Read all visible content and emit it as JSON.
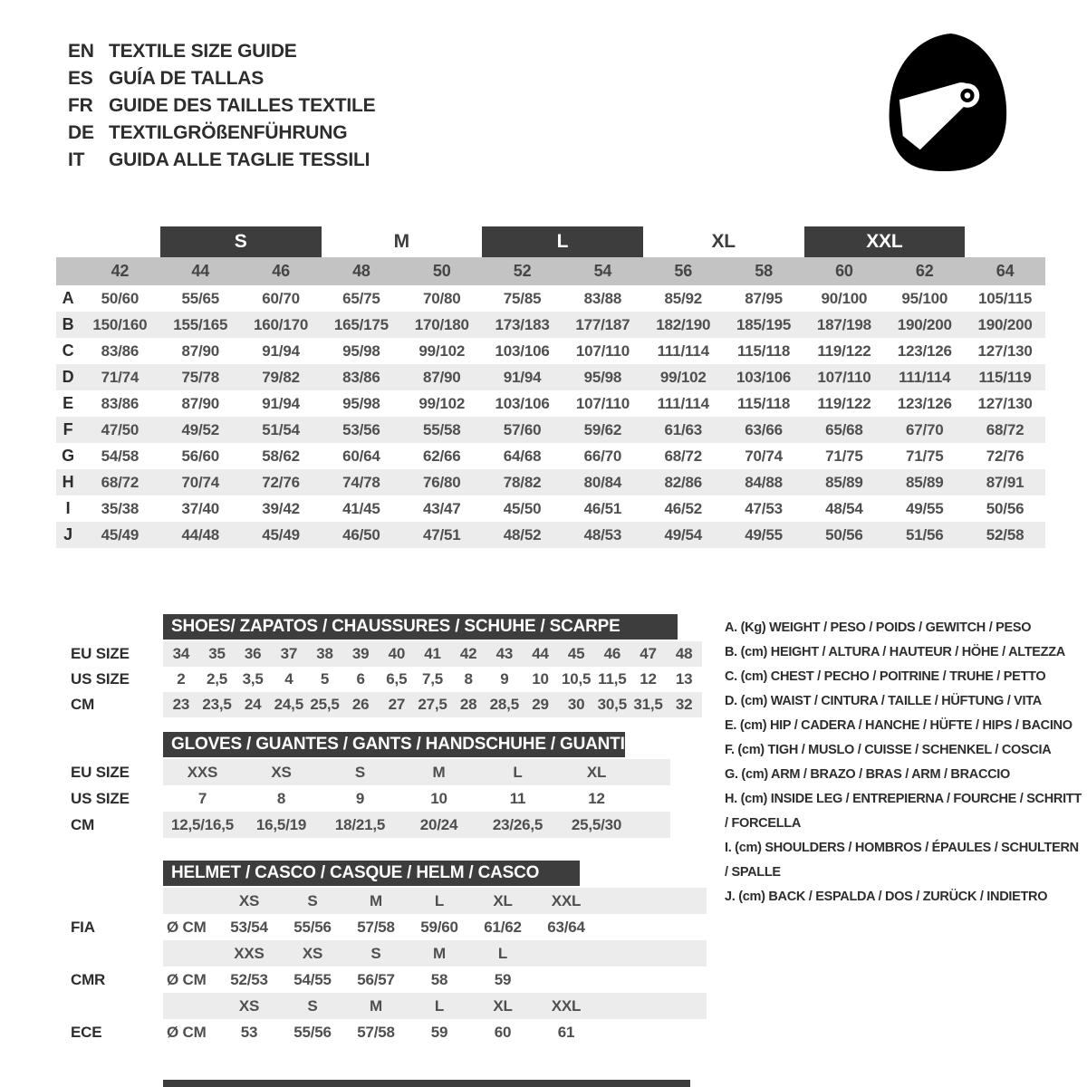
{
  "colors": {
    "dark": "#3d3d3d",
    "band": "#c3c3c3",
    "stripe": "#ececec",
    "text": "#4a4a4a"
  },
  "header": {
    "languages": [
      {
        "code": "EN",
        "label": "TEXTILE SIZE GUIDE"
      },
      {
        "code": "ES",
        "label": "GUÍA DE TALLAS"
      },
      {
        "code": "FR",
        "label": "GUIDE DES TAILLES TEXTILE"
      },
      {
        "code": "DE",
        "label": "TEXTILGRÖßENFÜHRUNG"
      },
      {
        "code": "IT",
        "label": "GUIDA ALLE TAGLIE TESSILI"
      }
    ],
    "icon": "racing-helmet"
  },
  "textile_table": {
    "size_groups": [
      {
        "label": "S",
        "boxed": true
      },
      {
        "label": "M",
        "boxed": false
      },
      {
        "label": "L",
        "boxed": true
      },
      {
        "label": "XL",
        "boxed": false
      },
      {
        "label": "XXL",
        "boxed": true
      }
    ],
    "size_numbers": [
      "42",
      "44",
      "46",
      "48",
      "50",
      "52",
      "54",
      "56",
      "58",
      "60",
      "62",
      "64"
    ],
    "rows": [
      {
        "letter": "A",
        "values": [
          "50/60",
          "55/65",
          "60/70",
          "65/75",
          "70/80",
          "75/85",
          "83/88",
          "85/92",
          "87/95",
          "90/100",
          "95/100",
          "105/115"
        ]
      },
      {
        "letter": "B",
        "values": [
          "150/160",
          "155/165",
          "160/170",
          "165/175",
          "170/180",
          "173/183",
          "177/187",
          "182/190",
          "185/195",
          "187/198",
          "190/200",
          "190/200"
        ]
      },
      {
        "letter": "C",
        "values": [
          "83/86",
          "87/90",
          "91/94",
          "95/98",
          "99/102",
          "103/106",
          "107/110",
          "111/114",
          "115/118",
          "119/122",
          "123/126",
          "127/130"
        ]
      },
      {
        "letter": "D",
        "values": [
          "71/74",
          "75/78",
          "79/82",
          "83/86",
          "87/90",
          "91/94",
          "95/98",
          "99/102",
          "103/106",
          "107/110",
          "111/114",
          "115/119"
        ]
      },
      {
        "letter": "E",
        "values": [
          "83/86",
          "87/90",
          "91/94",
          "95/98",
          "99/102",
          "103/106",
          "107/110",
          "111/114",
          "115/118",
          "119/122",
          "123/126",
          "127/130"
        ]
      },
      {
        "letter": "F",
        "values": [
          "47/50",
          "49/52",
          "51/54",
          "53/56",
          "55/58",
          "57/60",
          "59/62",
          "61/63",
          "63/66",
          "65/68",
          "67/70",
          "68/72"
        ]
      },
      {
        "letter": "G",
        "values": [
          "54/58",
          "56/60",
          "58/62",
          "60/64",
          "62/66",
          "64/68",
          "66/70",
          "68/72",
          "70/74",
          "71/75",
          "71/75",
          "72/76"
        ]
      },
      {
        "letter": "H",
        "values": [
          "68/72",
          "70/74",
          "72/76",
          "74/78",
          "76/80",
          "78/82",
          "80/84",
          "82/86",
          "84/88",
          "85/89",
          "85/89",
          "87/91"
        ]
      },
      {
        "letter": "I",
        "values": [
          "35/38",
          "37/40",
          "39/42",
          "41/45",
          "43/47",
          "45/50",
          "46/51",
          "46/52",
          "47/53",
          "48/54",
          "49/55",
          "50/56"
        ]
      },
      {
        "letter": "J",
        "values": [
          "45/49",
          "44/48",
          "45/49",
          "46/50",
          "47/51",
          "48/52",
          "48/53",
          "49/54",
          "49/55",
          "50/56",
          "51/56",
          "52/58"
        ]
      }
    ]
  },
  "shoes": {
    "title": "SHOES/ ZAPATOS / CHAUSSURES / SCHUHE / SCARPE",
    "rows": [
      {
        "label": "EU SIZE",
        "shaded": true,
        "values": [
          "34",
          "35",
          "36",
          "37",
          "38",
          "39",
          "40",
          "41",
          "42",
          "43",
          "44",
          "45",
          "46",
          "47",
          "48"
        ]
      },
      {
        "label": "US SIZE",
        "shaded": false,
        "values": [
          "2",
          "2,5",
          "3,5",
          "4",
          "5",
          "6",
          "6,5",
          "7,5",
          "8",
          "9",
          "10",
          "10,5",
          "11,5",
          "12",
          "13"
        ]
      },
      {
        "label": "CM",
        "shaded": true,
        "values": [
          "23",
          "23,5",
          "24",
          "24,5",
          "25,5",
          "26",
          "27",
          "27,5",
          "28",
          "28,5",
          "29",
          "30",
          "30,5",
          "31,5",
          "32"
        ]
      }
    ]
  },
  "gloves": {
    "title": "GLOVES / GUANTES / GANTS / HANDSCHUHE / GUANTI",
    "rows": [
      {
        "label": "EU SIZE",
        "shaded": true,
        "values": [
          "XXS",
          "XS",
          "S",
          "M",
          "L",
          "XL"
        ]
      },
      {
        "label": "US SIZE",
        "shaded": false,
        "values": [
          "7",
          "8",
          "9",
          "10",
          "11",
          "12"
        ]
      },
      {
        "label": "CM",
        "shaded": true,
        "values": [
          "12,5/16,5",
          "16,5/19",
          "18/21,5",
          "20/24",
          "23/26,5",
          "25,5/30"
        ]
      }
    ]
  },
  "helmet": {
    "title": "HELMET / CASCO / CASQUE / HELM / CASCO",
    "groups": [
      {
        "standard": "FIA",
        "unit": "Ø CM",
        "sizes": [
          "XS",
          "S",
          "M",
          "L",
          "XL",
          "XXL"
        ],
        "values": [
          "53/54",
          "55/56",
          "57/58",
          "59/60",
          "61/62",
          "63/64"
        ]
      },
      {
        "standard": "CMR",
        "unit": "Ø CM",
        "sizes": [
          "XXS",
          "XS",
          "S",
          "M",
          "L",
          ""
        ],
        "values": [
          "52/53",
          "54/55",
          "56/57",
          "58",
          "59",
          ""
        ]
      },
      {
        "standard": "ECE",
        "unit": "Ø CM",
        "sizes": [
          "XS",
          "S",
          "M",
          "L",
          "XL",
          "XXL"
        ],
        "values": [
          "53",
          "55/56",
          "57/58",
          "59",
          "60",
          "61"
        ]
      }
    ]
  },
  "legend": {
    "items": [
      {
        "key": "A.",
        "unit": "(Kg)",
        "text": "WEIGHT / PESO / POIDS / GEWITCH / PESO"
      },
      {
        "key": "B.",
        "unit": "(cm)",
        "text": "HEIGHT / ALTURA / HAUTEUR / HÖHE / ALTEZZA"
      },
      {
        "key": "C.",
        "unit": "(cm)",
        "text": "CHEST / PECHO / POITRINE / TRUHE / PETTO"
      },
      {
        "key": "D.",
        "unit": "(cm)",
        "text": "WAIST / CINTURA / TAILLE / HÜFTUNG / VITA"
      },
      {
        "key": "E.",
        "unit": "(cm)",
        "text": "HIP / CADERA / HANCHE / HÜFTE / HIPS / BACINO"
      },
      {
        "key": "F.",
        "unit": "(cm)",
        "text": "TIGH / MUSLO / CUISSE / SCHENKEL / COSCIA"
      },
      {
        "key": "G.",
        "unit": "(cm)",
        "text": "ARM / BRAZO / BRAS / ARM / BRACCIO"
      },
      {
        "key": "H.",
        "unit": "(cm)",
        "text": "INSIDE LEG / ENTREPIERNA / FOURCHE / SCHRITT / FORCELLA"
      },
      {
        "key": "I.",
        "unit": "(cm)",
        "text": "SHOULDERS / HOMBROS / ÉPAULES / SCHULTERN / SPALLE"
      },
      {
        "key": "J.",
        "unit": "(cm)",
        "text": "BACK / ESPALDA / DOS / ZURÜCK / INDIETRO"
      }
    ]
  }
}
